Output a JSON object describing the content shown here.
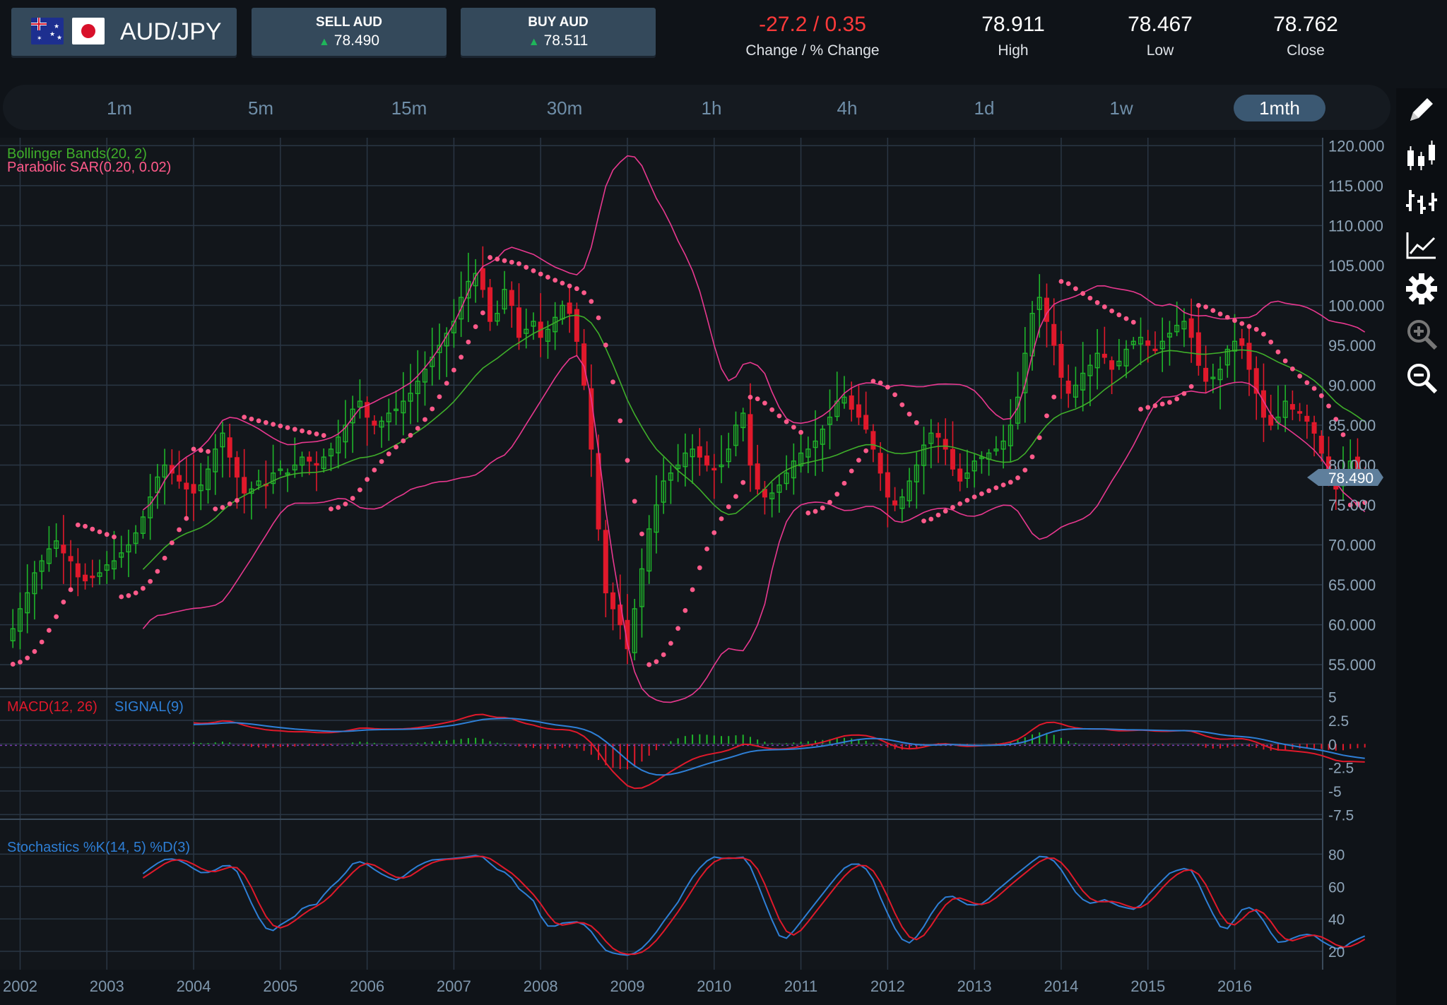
{
  "header": {
    "pair": "AUD/JPY",
    "sell": {
      "label": "SELL AUD",
      "price": "78.490"
    },
    "buy": {
      "label": "BUY AUD",
      "price": "78.511"
    },
    "change": {
      "value": "-27.2 / 0.35",
      "label": "Change / % Change"
    },
    "high": {
      "value": "78.911",
      "label": "High"
    },
    "low": {
      "value": "78.467",
      "label": "Low"
    },
    "close": {
      "value": "78.762",
      "label": "Close"
    }
  },
  "timeframes": [
    "1m",
    "5m",
    "15m",
    "30m",
    "1h",
    "4h",
    "1d",
    "1w",
    "1mth"
  ],
  "active_timeframe": "1mth",
  "tools": [
    "pencil-icon",
    "candlestick-icon",
    "ohlc-bars-icon",
    "line-chart-icon",
    "settings-icon",
    "zoom-in-icon",
    "zoom-out-icon"
  ],
  "colors": {
    "up": "#1fb52a",
    "down": "#e0192b",
    "bollinger_mid": "#3fae2a",
    "bollinger_band": "#e8388f",
    "sar": "#ff5a8a",
    "macd": "#e0192b",
    "signal": "#2e7fd6",
    "accent": "#3b5872"
  },
  "chart_data": [
    {
      "type": "candlestick",
      "title": "",
      "indicators": [
        "Bollinger Bands(20, 2)",
        "Parabolic SAR(0.20, 0.02)"
      ],
      "x_ticks": [
        "2002",
        "2003",
        "2004",
        "2005",
        "2006",
        "2007",
        "2008",
        "2009",
        "2010",
        "2011",
        "2012",
        "2013",
        "2014",
        "2015",
        "2016"
      ],
      "y_ticks": [
        "120.000",
        "115.000",
        "110.000",
        "105.000",
        "100.000",
        "95.000",
        "90.000",
        "85.000",
        "80.000",
        "75.000",
        "70.000",
        "65.000",
        "60.000",
        "55.000"
      ],
      "ylim": [
        52,
        121
      ],
      "current_price": "78.490",
      "close_series": {
        "start": "2001-11",
        "step": "1 month",
        "values": [
          58.0,
          59.5,
          62.0,
          64.0,
          66.5,
          68.0,
          69.5,
          70.5,
          69.0,
          68.0,
          66.0,
          65.5,
          66.0,
          66.5,
          67.5,
          68.0,
          69.0,
          70.0,
          71.5,
          73.5,
          76.0,
          78.5,
          80.0,
          79.0,
          78.0,
          77.0,
          76.5,
          77.5,
          79.5,
          82.0,
          84.0,
          81.0,
          78.5,
          76.5,
          77.0,
          78.0,
          77.5,
          79.0,
          79.5,
          79.0,
          80.0,
          81.0,
          80.5,
          80.0,
          81.0,
          82.0,
          83.5,
          85.0,
          87.0,
          88.0,
          86.0,
          85.0,
          85.5,
          86.5,
          87.0,
          88.0,
          89.0,
          90.5,
          92.0,
          93.5,
          95.0,
          96.5,
          98.0,
          101.0,
          103.0,
          104.0,
          102.0,
          98.0,
          99.0,
          102.0,
          100.0,
          96.0,
          97.0,
          98.0,
          96.0,
          97.0,
          98.5,
          100.0,
          99.0,
          95.5,
          90.0,
          82.0,
          72.0,
          64.0,
          62.0,
          60.0,
          57.0,
          62.0,
          67.0,
          72.0,
          75.0,
          78.0,
          79.0,
          80.0,
          81.5,
          82.0,
          81.0,
          80.0,
          79.5,
          80.0,
          82.0,
          85.0,
          86.5,
          80.0,
          77.0,
          76.0,
          76.5,
          77.5,
          79.0,
          80.5,
          81.5,
          82.0,
          83.0,
          84.5,
          86.0,
          88.0,
          88.5,
          87.0,
          86.0,
          84.5,
          82.0,
          79.0,
          76.0,
          75.0,
          76.0,
          78.0,
          80.0,
          82.5,
          84.0,
          83.5,
          82.0,
          79.5,
          78.0,
          79.0,
          80.5,
          81.0,
          81.5,
          82.0,
          83.0,
          85.0,
          88.5,
          94.0,
          99.0,
          101.0,
          98.0,
          95.0,
          91.0,
          89.0,
          90.0,
          91.5,
          92.5,
          94.0,
          93.5,
          92.0,
          93.0,
          94.5,
          95.5,
          96.0,
          95.0,
          94.5,
          95.5,
          96.5,
          97.5,
          98.0,
          96.0,
          92.5,
          90.5,
          91.0,
          92.0,
          94.5,
          95.5,
          95.0,
          92.0,
          89.0,
          86.0,
          85.0,
          86.0,
          88.0,
          87.0,
          86.5,
          85.5,
          84.0,
          81.5,
          79.0,
          77.0,
          78.5,
          80.5,
          79.0,
          78.49
        ]
      },
      "bollinger_series": {
        "upper_peak": 120.5,
        "lower_trough": 53.0
      },
      "parabolic_sar": "dotted series"
    },
    {
      "type": "line",
      "title": "MACD(12, 26)",
      "series": [
        {
          "name": "MACD(12, 26)"
        },
        {
          "name": "SIGNAL(9)"
        }
      ],
      "y_ticks": [
        "5",
        "2.5",
        "0",
        "-2.5",
        "-5",
        "-7.5"
      ],
      "ylim": [
        -8,
        5.5
      ]
    },
    {
      "type": "line",
      "title": "Stochastics %K(14, 5) %D(3)",
      "series": [
        {
          "name": "%K(14, 5)"
        },
        {
          "name": "%D(3)"
        }
      ],
      "y_ticks": [
        "80",
        "60",
        "40",
        "20"
      ],
      "ylim": [
        10,
        95
      ]
    }
  ],
  "labels": {
    "bollinger": "Bollinger Bands(20, 2)",
    "sar": "Parabolic SAR(0.20, 0.02)",
    "macd": "MACD(12, 26)",
    "signal": "SIGNAL(9)",
    "stoch": "Stochastics %K(14, 5) %D(3)"
  }
}
